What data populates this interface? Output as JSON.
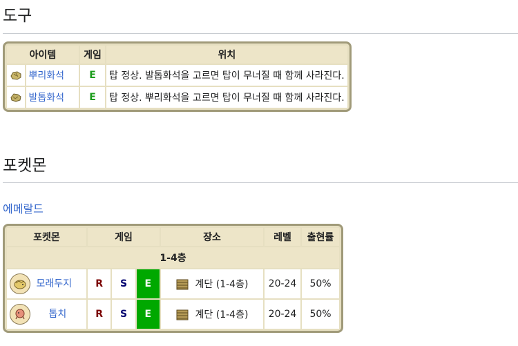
{
  "tools_section": {
    "heading": "도구",
    "headers": {
      "item": "아이템",
      "game": "게임",
      "location": "위치"
    },
    "rows": [
      {
        "name": "뿌리화석",
        "game": "E",
        "location": "탑 정상. 발톱화석을 고르면 탑이 무너질 때 함께 사라진다.",
        "icon": "root-fossil-icon"
      },
      {
        "name": "발톱화석",
        "game": "E",
        "location": "탑 정상. 뿌리화석을 고르면 탑이 무너질 때 함께 사라진다.",
        "icon": "claw-fossil-icon"
      }
    ]
  },
  "pokemon_section": {
    "heading": "포켓몬",
    "game_link": "에메랄드",
    "headers": {
      "pokemon": "포켓몬",
      "game": "게임",
      "place": "장소",
      "level": "레벨",
      "rate": "출현률"
    },
    "group_label": "1-4층",
    "rows": [
      {
        "name": "모래두지",
        "games": [
          "R",
          "S",
          "E"
        ],
        "place": "계단 (1-4층)",
        "level": "20-24",
        "rate": "50%",
        "icon": "sandshrew-icon"
      },
      {
        "name": "톱치",
        "games": [
          "R",
          "S",
          "E"
        ],
        "place": "계단 (1-4층)",
        "level": "20-24",
        "rate": "50%",
        "icon": "trapinch-icon"
      }
    ]
  },
  "colors": {
    "table_border": "#a09a79",
    "header_bg": "#ede5c8",
    "emerald": "#00a800",
    "link": "#3366cc"
  }
}
